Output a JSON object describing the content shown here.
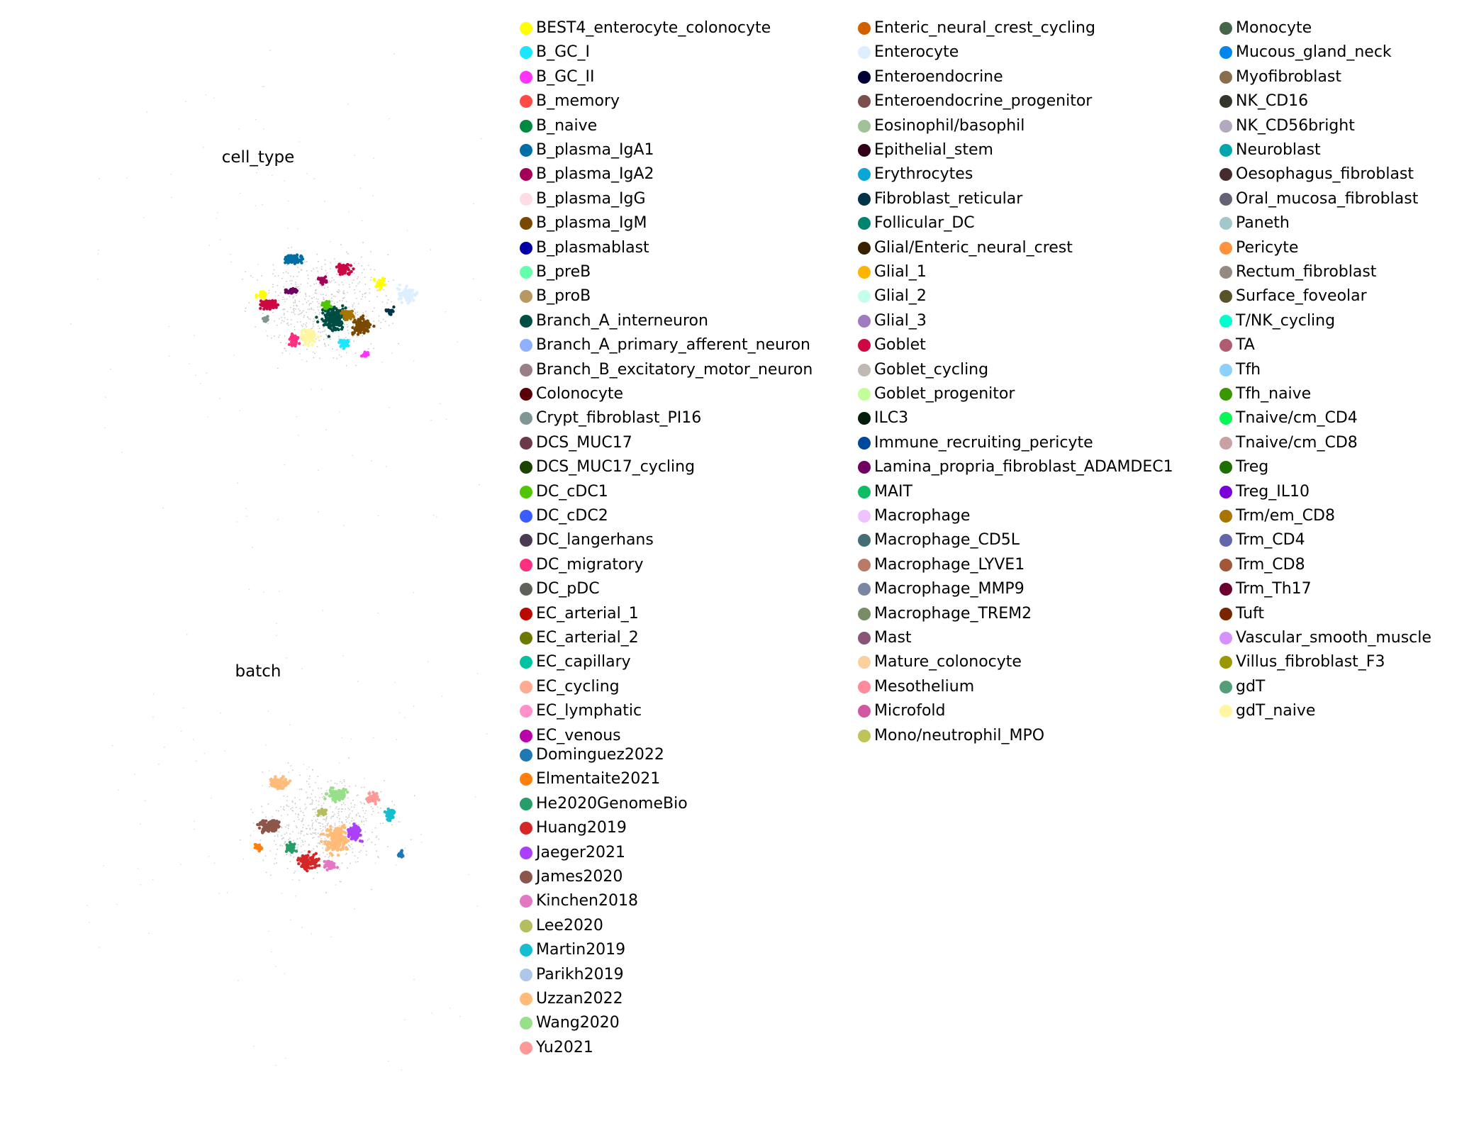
{
  "chart_data": [
    {
      "type": "scatter",
      "title": "cell_type",
      "xlabel": "",
      "ylabel": "",
      "grid": false,
      "legend_position": "right",
      "series": [
        {
          "name": "BEST4_enterocyte_colonocyte",
          "color": "#ffff00"
        },
        {
          "name": "B_GC_I",
          "color": "#1ce6ff"
        },
        {
          "name": "B_GC_II",
          "color": "#ff34ff"
        },
        {
          "name": "B_memory",
          "color": "#ff4a46"
        },
        {
          "name": "B_naive",
          "color": "#008941"
        },
        {
          "name": "B_plasma_IgA1",
          "color": "#006fa6"
        },
        {
          "name": "B_plasma_IgA2",
          "color": "#a30059"
        },
        {
          "name": "B_plasma_IgG",
          "color": "#ffdbe5"
        },
        {
          "name": "B_plasma_IgM",
          "color": "#7a4900"
        },
        {
          "name": "B_plasmablast",
          "color": "#0000a6"
        },
        {
          "name": "B_preB",
          "color": "#63ffac"
        },
        {
          "name": "B_proB",
          "color": "#b79762"
        },
        {
          "name": "Branch_A_interneuron",
          "color": "#004d43"
        },
        {
          "name": "Branch_A_primary_afferent_neuron",
          "color": "#8fb0ff"
        },
        {
          "name": "Branch_B_excitatory_motor_neuron",
          "color": "#997d87"
        },
        {
          "name": "Colonocyte",
          "color": "#5a0007"
        },
        {
          "name": "Crypt_fibroblast_PI16",
          "color": "#809693"
        },
        {
          "name": "DCS_MUC17",
          "color": "#6a3a4c"
        },
        {
          "name": "DCS_MUC17_cycling",
          "color": "#1b4400"
        },
        {
          "name": "DC_cDC1",
          "color": "#4fc601"
        },
        {
          "name": "DC_cDC2",
          "color": "#3b5dff"
        },
        {
          "name": "DC_langerhans",
          "color": "#4a3b53"
        },
        {
          "name": "DC_migratory",
          "color": "#ff2f80"
        },
        {
          "name": "DC_pDC",
          "color": "#61615a"
        },
        {
          "name": "EC_arterial_1",
          "color": "#ba0900"
        },
        {
          "name": "EC_arterial_2",
          "color": "#6b7900"
        },
        {
          "name": "EC_capillary",
          "color": "#00c2a0"
        },
        {
          "name": "EC_cycling",
          "color": "#ffaa92"
        },
        {
          "name": "EC_lymphatic",
          "color": "#ff90c9"
        },
        {
          "name": "EC_venous",
          "color": "#b903aa"
        },
        {
          "name": "Enteric_neural_crest_cycling",
          "color": "#d16100"
        },
        {
          "name": "Enterocyte",
          "color": "#ddefff"
        },
        {
          "name": "Enteroendocrine",
          "color": "#000035"
        },
        {
          "name": "Enteroendocrine_progenitor",
          "color": "#7b4f4b"
        },
        {
          "name": "Eosinophil/basophil",
          "color": "#a1c299"
        },
        {
          "name": "Epithelial_stem",
          "color": "#300018"
        },
        {
          "name": "Erythrocytes",
          "color": "#0aa6d8"
        },
        {
          "name": "Fibroblast_reticular",
          "color": "#013349"
        },
        {
          "name": "Follicular_DC",
          "color": "#00846f"
        },
        {
          "name": "Glial/Enteric_neural_crest",
          "color": "#372101"
        },
        {
          "name": "Glial_1",
          "color": "#ffb500"
        },
        {
          "name": "Glial_2",
          "color": "#c2ffed"
        },
        {
          "name": "Glial_3",
          "color": "#a079bf"
        },
        {
          "name": "Goblet",
          "color": "#cc0744"
        },
        {
          "name": "Goblet_cycling",
          "color": "#c0b9b2"
        },
        {
          "name": "Goblet_progenitor",
          "color": "#c2ff99"
        },
        {
          "name": "ILC3",
          "color": "#001e09"
        },
        {
          "name": "Immune_recruiting_pericyte",
          "color": "#00489c"
        },
        {
          "name": "Lamina_propria_fibroblast_ADAMDEC1",
          "color": "#6f0062"
        },
        {
          "name": "MAIT",
          "color": "#0cbd66"
        },
        {
          "name": "Macrophage",
          "color": "#eec3ff"
        },
        {
          "name": "Macrophage_CD5L",
          "color": "#456d75"
        },
        {
          "name": "Macrophage_LYVE1",
          "color": "#b77b68"
        },
        {
          "name": "Macrophage_MMP9",
          "color": "#7a87a1"
        },
        {
          "name": "Macrophage_TREM2",
          "color": "#788d66"
        },
        {
          "name": "Mast",
          "color": "#885578"
        },
        {
          "name": "Mature_colonocyte",
          "color": "#fad09f"
        },
        {
          "name": "Mesothelium",
          "color": "#ff8a9a"
        },
        {
          "name": "Microfold",
          "color": "#d157a0"
        },
        {
          "name": "Mono/neutrophil_MPO",
          "color": "#bec459"
        },
        {
          "name": "Monocyte",
          "color": "#456648"
        },
        {
          "name": "Mucous_gland_neck",
          "color": "#0086ed"
        },
        {
          "name": "Myofibroblast",
          "color": "#886f4c"
        },
        {
          "name": "NK_CD16",
          "color": "#34362d"
        },
        {
          "name": "NK_CD56bright",
          "color": "#b4a8bd"
        },
        {
          "name": "Neuroblast",
          "color": "#00a6aa"
        },
        {
          "name": "Oesophagus_fibroblast",
          "color": "#452c2c"
        },
        {
          "name": "Oral_mucosa_fibroblast",
          "color": "#636375"
        },
        {
          "name": "Paneth",
          "color": "#a3c8c9"
        },
        {
          "name": "Pericyte",
          "color": "#ff913f"
        },
        {
          "name": "Rectum_fibroblast",
          "color": "#938a81"
        },
        {
          "name": "Surface_foveolar",
          "color": "#575329"
        },
        {
          "name": "T/NK_cycling",
          "color": "#00fecf"
        },
        {
          "name": "TA",
          "color": "#b05b6f"
        },
        {
          "name": "Tfh",
          "color": "#8cd0ff"
        },
        {
          "name": "Tfh_naive",
          "color": "#3b9700"
        },
        {
          "name": "Tnaive/cm_CD4",
          "color": "#04f757"
        },
        {
          "name": "Tnaive/cm_CD8",
          "color": "#c8a1a1"
        },
        {
          "name": "Treg",
          "color": "#1e6e00"
        },
        {
          "name": "Treg_IL10",
          "color": "#7900d7"
        },
        {
          "name": "Trm/em_CD8",
          "color": "#a77500"
        },
        {
          "name": "Trm_CD4",
          "color": "#6367a9"
        },
        {
          "name": "Trm_CD8",
          "color": "#a05837"
        },
        {
          "name": "Trm_Th17",
          "color": "#6b002c"
        },
        {
          "name": "Tuft",
          "color": "#772600"
        },
        {
          "name": "Vascular_smooth_muscle",
          "color": "#d790ff"
        },
        {
          "name": "Villus_fibroblast_F3",
          "color": "#9b9700"
        },
        {
          "name": "gdT",
          "color": "#549e79"
        },
        {
          "name": "gdT_naive",
          "color": "#fff69f"
        }
      ]
    },
    {
      "type": "scatter",
      "title": "batch",
      "xlabel": "",
      "ylabel": "",
      "grid": false,
      "legend_position": "right",
      "series": [
        {
          "name": "Dominguez2022",
          "color": "#1f77b4"
        },
        {
          "name": "Elmentaite2021",
          "color": "#ff7f0e"
        },
        {
          "name": "He2020GenomeBio",
          "color": "#279e68"
        },
        {
          "name": "Huang2019",
          "color": "#d62728"
        },
        {
          "name": "Jaeger2021",
          "color": "#aa40fc"
        },
        {
          "name": "James2020",
          "color": "#8c564b"
        },
        {
          "name": "Kinchen2018",
          "color": "#e377c2"
        },
        {
          "name": "Lee2020",
          "color": "#b5bd61"
        },
        {
          "name": "Martin2019",
          "color": "#17becf"
        },
        {
          "name": "Parikh2019",
          "color": "#aec7e8"
        },
        {
          "name": "Uzzan2022",
          "color": "#ffbb78"
        },
        {
          "name": "Wang2020",
          "color": "#98df8a"
        },
        {
          "name": "Yu2021",
          "color": "#ff9896"
        }
      ]
    }
  ]
}
